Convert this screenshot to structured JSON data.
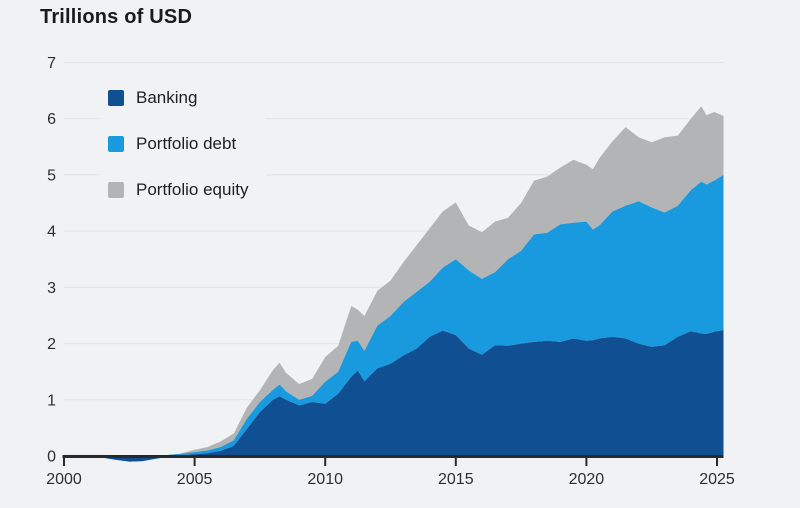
{
  "title": "Trillions of USD",
  "colors": {
    "background": "#f1f2f4",
    "banking": "#114f93",
    "portfolio_debt": "#199ade",
    "portfolio_equity": "#b3b4b6",
    "gridline": "#e1e2e4",
    "axis": "#28292b",
    "text": "#2e2e30"
  },
  "chart_data": {
    "type": "area",
    "stacked": true,
    "title": "Trillions of USD",
    "xlabel": "",
    "ylabel": "Trillions of USD",
    "grid": "horizontal",
    "legend_position": "top-left-inside",
    "xlim": [
      2000,
      2025.25
    ],
    "ylim": [
      0,
      7
    ],
    "x_ticks": [
      2000,
      2005,
      2010,
      2015,
      2020,
      2025
    ],
    "y_ticks": [
      0,
      1,
      2,
      3,
      4,
      5,
      6,
      7
    ],
    "x": [
      2000,
      2000.5,
      2001,
      2001.5,
      2002,
      2002.5,
      2003,
      2003.5,
      2004,
      2004.5,
      2005,
      2005.5,
      2006,
      2006.5,
      2007,
      2007.5,
      2008,
      2008.25,
      2008.5,
      2009,
      2009.5,
      2010,
      2010.5,
      2011,
      2011.25,
      2011.5,
      2012,
      2012.5,
      2013,
      2013.5,
      2014,
      2014.5,
      2015,
      2015.5,
      2016,
      2016.5,
      2017,
      2017.5,
      2018,
      2018.5,
      2019,
      2019.5,
      2020,
      2020.25,
      2020.5,
      2021,
      2021.5,
      2022,
      2022.5,
      2023,
      2023.5,
      2024,
      2024.4,
      2024.6,
      2024.9,
      2025.25
    ],
    "series": [
      {
        "name": "Banking",
        "color_key": "banking",
        "values": [
          0.0,
          0.0,
          -0.01,
          -0.03,
          -0.07,
          -0.1,
          -0.09,
          -0.05,
          -0.01,
          0.01,
          0.03,
          0.05,
          0.09,
          0.18,
          0.48,
          0.78,
          1.0,
          1.06,
          1.0,
          0.9,
          0.96,
          0.93,
          1.11,
          1.41,
          1.52,
          1.33,
          1.56,
          1.64,
          1.79,
          1.91,
          2.12,
          2.23,
          2.15,
          1.91,
          1.8,
          1.97,
          1.96,
          2.0,
          2.03,
          2.05,
          2.03,
          2.09,
          2.05,
          2.06,
          2.09,
          2.12,
          2.09,
          2.0,
          1.94,
          1.97,
          2.12,
          2.22,
          2.18,
          2.17,
          2.21,
          2.24
        ]
      },
      {
        "name": "Portfolio debt",
        "color_key": "portfolio_debt",
        "values": [
          0.01,
          0.01,
          0.02,
          0.03,
          0.04,
          0.04,
          0.04,
          0.03,
          0.03,
          0.03,
          0.04,
          0.05,
          0.07,
          0.1,
          0.18,
          0.18,
          0.18,
          0.21,
          0.15,
          0.1,
          0.11,
          0.39,
          0.39,
          0.62,
          0.53,
          0.54,
          0.76,
          0.85,
          0.95,
          1.01,
          0.98,
          1.12,
          1.35,
          1.39,
          1.35,
          1.3,
          1.54,
          1.65,
          1.91,
          1.92,
          2.09,
          2.06,
          2.12,
          1.97,
          2.01,
          2.23,
          2.36,
          2.53,
          2.48,
          2.36,
          2.33,
          2.51,
          2.7,
          2.66,
          2.69,
          2.76
        ]
      },
      {
        "name": "Portfolio equity",
        "color_key": "portfolio_equity",
        "values": [
          0.01,
          0.01,
          0.01,
          0.02,
          0.04,
          0.06,
          0.02,
          -0.03,
          -0.04,
          0.01,
          0.04,
          0.06,
          0.1,
          0.12,
          0.2,
          0.21,
          0.35,
          0.39,
          0.33,
          0.28,
          0.3,
          0.44,
          0.46,
          0.64,
          0.55,
          0.62,
          0.62,
          0.63,
          0.71,
          0.83,
          0.95,
          1.0,
          1.01,
          0.8,
          0.83,
          0.9,
          0.74,
          0.85,
          0.96,
          1.0,
          1.01,
          1.12,
          1.01,
          1.07,
          1.2,
          1.25,
          1.4,
          1.14,
          1.16,
          1.34,
          1.25,
          1.27,
          1.34,
          1.23,
          1.22,
          1.05
        ]
      }
    ]
  }
}
